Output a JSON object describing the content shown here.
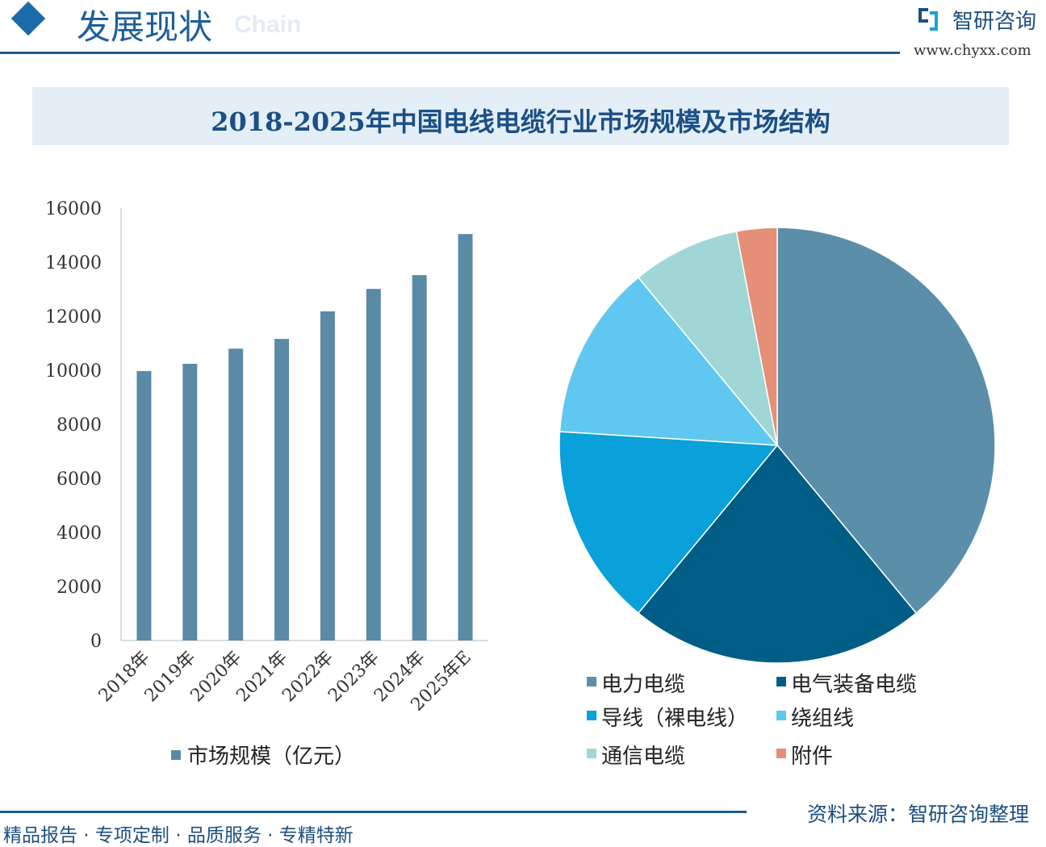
{
  "header": {
    "section_title": "发展现状",
    "background_text": "Chain",
    "logo_text": "智研咨询",
    "logo_url": "www.chyxx.com"
  },
  "footer": {
    "tagline": "精品报告 · 专项定制 · 品质服务 · 专精特新",
    "source": "资料来源：智研咨询整理"
  },
  "chart_data": [
    {
      "type": "bar",
      "title": "2018-2025年中国电线电缆行业市场规模及市场结构",
      "categories": [
        "2018年",
        "2019年",
        "2020年",
        "2021年",
        "2022年",
        "2023年",
        "2024年",
        "2025年E"
      ],
      "series": [
        {
          "name": "市场规模（亿元）",
          "values": [
            9970,
            10240,
            10800,
            11160,
            12180,
            13010,
            13520,
            15040
          ],
          "color": "#5a8aa6"
        }
      ],
      "ylim": [
        0,
        16000
      ],
      "yticks": [
        0,
        2000,
        4000,
        6000,
        8000,
        10000,
        12000,
        14000,
        16000
      ],
      "legend": "bottom-left",
      "grid": false
    },
    {
      "type": "pie",
      "unit": "%",
      "slices": [
        {
          "label": "电力电缆",
          "value": 39,
          "color": "#5b8ea9"
        },
        {
          "label": "电气装备电缆",
          "value": 22,
          "color": "#005d86"
        },
        {
          "label": "导线（裸电线）",
          "value": 15,
          "color": "#0aa0d9"
        },
        {
          "label": "绕组线",
          "value": 13,
          "color": "#60c8f0"
        },
        {
          "label": "通信电缆",
          "value": 8,
          "color": "#a0d7d6"
        },
        {
          "label": "附件",
          "value": 3,
          "color": "#e58e78"
        }
      ],
      "legend": "bottom"
    }
  ]
}
